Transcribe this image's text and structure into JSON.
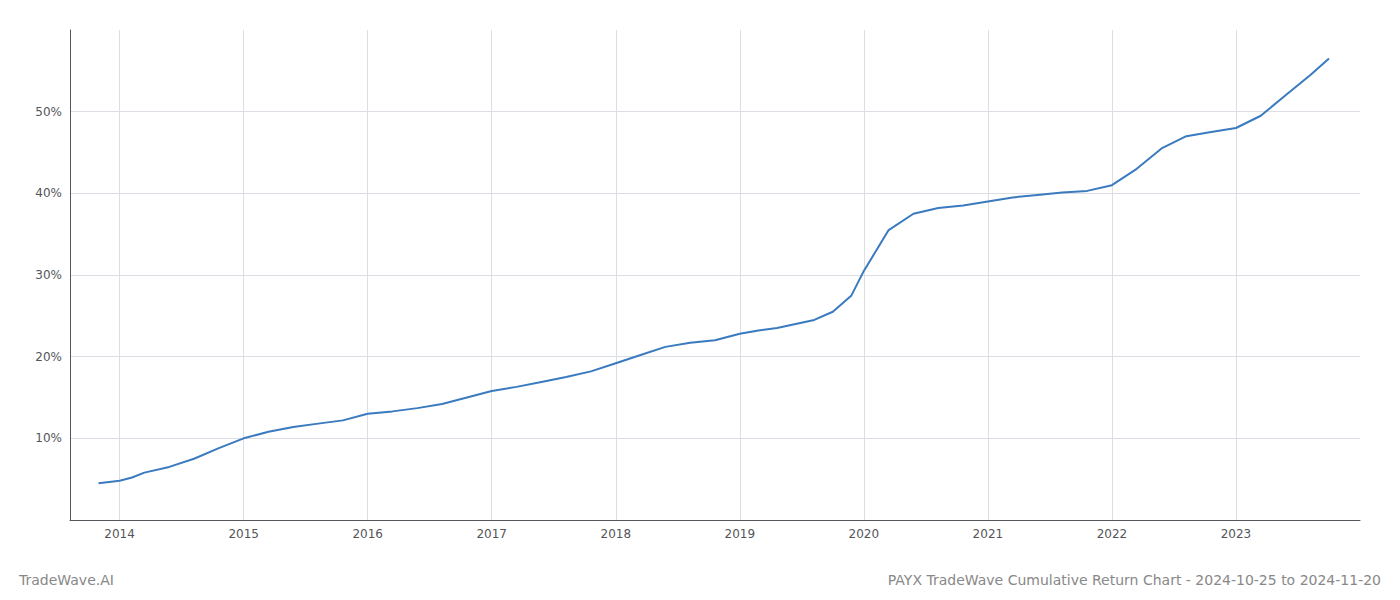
{
  "chart_data": {
    "type": "line",
    "title": "PAYX TradeWave Cumulative Return Chart - 2024-10-25 to 2024-11-20",
    "annotations": [
      "TradeWave.AI"
    ],
    "x": [
      2013.83,
      2014.0,
      2014.1,
      2014.2,
      2014.4,
      2014.6,
      2014.8,
      2015.0,
      2015.2,
      2015.4,
      2015.6,
      2015.8,
      2016.0,
      2016.2,
      2016.4,
      2016.6,
      2016.8,
      2017.0,
      2017.2,
      2017.4,
      2017.6,
      2017.8,
      2018.0,
      2018.2,
      2018.4,
      2018.6,
      2018.8,
      2019.0,
      2019.15,
      2019.3,
      2019.45,
      2019.6,
      2019.75,
      2019.9,
      2020.0,
      2020.1,
      2020.2,
      2020.4,
      2020.6,
      2020.8,
      2021.0,
      2021.2,
      2021.4,
      2021.6,
      2021.8,
      2022.0,
      2022.2,
      2022.4,
      2022.6,
      2022.8,
      2023.0,
      2023.2,
      2023.4,
      2023.6,
      2023.75
    ],
    "values": [
      4.5,
      4.8,
      5.2,
      5.8,
      6.5,
      7.5,
      8.8,
      10.0,
      10.8,
      11.4,
      11.8,
      12.2,
      13.0,
      13.3,
      13.7,
      14.2,
      15.0,
      15.8,
      16.3,
      16.9,
      17.5,
      18.2,
      19.2,
      20.2,
      21.2,
      21.7,
      22.0,
      22.8,
      23.2,
      23.5,
      24.0,
      24.5,
      25.5,
      27.5,
      30.5,
      33.0,
      35.5,
      37.5,
      38.2,
      38.5,
      39.0,
      39.5,
      39.8,
      40.1,
      40.3,
      41.0,
      43.0,
      45.5,
      47.0,
      47.5,
      48.0,
      49.5,
      52.0,
      54.5,
      56.5
    ],
    "color": "#3a7abf",
    "xlim": [
      2013.6,
      2024.0
    ],
    "xticks": [
      2014,
      2015,
      2016,
      2017,
      2018,
      2019,
      2020,
      2021,
      2022,
      2023
    ],
    "ylim": [
      0,
      60
    ],
    "yticks": [
      {
        "value": 10,
        "label": "10%"
      },
      {
        "value": 20,
        "label": "20%"
      },
      {
        "value": 30,
        "label": "30%"
      },
      {
        "value": 40,
        "label": "40%"
      },
      {
        "value": 50,
        "label": "50%"
      }
    ],
    "grid": true
  }
}
